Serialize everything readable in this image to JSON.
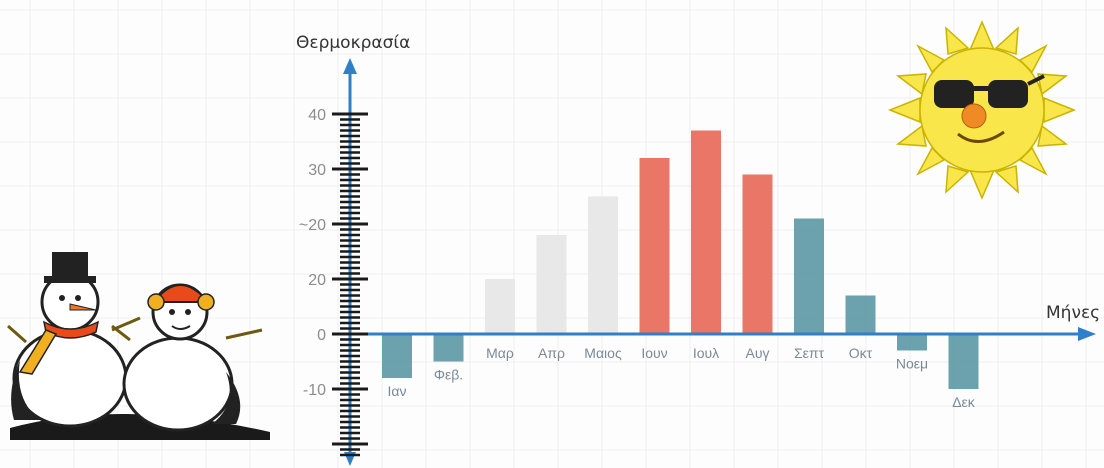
{
  "chart_data": {
    "type": "bar",
    "ylabel": "Θερμοκρασία",
    "xlabel": "Μήνες",
    "categories": [
      "Ιαν",
      "Φεβ.",
      "Μαρ",
      "Απρ",
      "Μαιος",
      "Ιουν",
      "Ιουλ",
      "Αυγ",
      "Σεπτ",
      "Οκτ",
      "Νοεμ",
      "Δεκ"
    ],
    "values": [
      -8,
      -5,
      10,
      18,
      25,
      32,
      37,
      29,
      21,
      7,
      -3,
      -10
    ],
    "y_tick_labels": [
      "-10",
      "0",
      "20",
      "~20",
      "30",
      "40"
    ],
    "ylim": [
      -12,
      40
    ],
    "grid": true,
    "colors": {
      "cold": "#5e9aa6",
      "mild": "#e6e6e6",
      "hot": "#e86a5a",
      "axis": "#2f80c8"
    },
    "bar_color_groups": [
      "cold",
      "cold",
      "mild",
      "mild",
      "mild",
      "hot",
      "hot",
      "hot",
      "cold",
      "cold",
      "cold",
      "cold"
    ]
  },
  "decorations": {
    "left": "snowmen",
    "right": "sun-with-sunglasses"
  }
}
